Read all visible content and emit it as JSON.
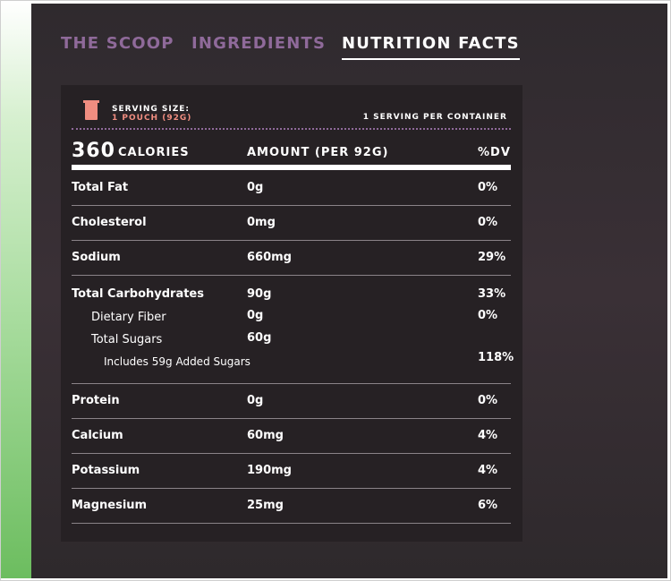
{
  "tabs": [
    {
      "label": "THE SCOOP",
      "active": false
    },
    {
      "label": "INGREDIENTS",
      "active": false
    },
    {
      "label": "NUTRITION FACTS",
      "active": true
    }
  ],
  "serving": {
    "size_label": "SERVING SIZE:",
    "size_value": "1 POUCH (92G)",
    "per_container": "1 SERVING PER CONTAINER"
  },
  "header": {
    "calories_value": "360",
    "calories_label": "CALORIES",
    "amount_label": "AMOUNT (PER 92G)",
    "dv_label": "%DV"
  },
  "nutrients": [
    {
      "name": "Total Fat",
      "amount": "0g",
      "dv": "0%"
    },
    {
      "name": "Cholesterol",
      "amount": "0mg",
      "dv": "0%"
    },
    {
      "name": "Sodium",
      "amount": "660mg",
      "dv": "29%"
    },
    {
      "name": "Total Carbohydrates",
      "amount": "90g",
      "dv": "33%"
    },
    {
      "name": "Dietary Fiber",
      "amount": "0g",
      "dv": "0%"
    },
    {
      "name": "Total Sugars",
      "amount": "60g",
      "dv": ""
    },
    {
      "name": "Includes 59g Added Sugars",
      "amount": "",
      "dv": "118%"
    },
    {
      "name": "Protein",
      "amount": "0g",
      "dv": "0%"
    },
    {
      "name": "Calcium",
      "amount": "60mg",
      "dv": "4%"
    },
    {
      "name": "Potassium",
      "amount": "190mg",
      "dv": "4%"
    },
    {
      "name": "Magnesium",
      "amount": "25mg",
      "dv": "6%"
    }
  ],
  "colors": {
    "background": "#2f2a2e",
    "card": "#262124",
    "accent_purple": "#8f6a9a",
    "accent_coral": "#f08d80",
    "text": "#ffffff"
  },
  "icons": {
    "pouch": "pouch-icon"
  }
}
